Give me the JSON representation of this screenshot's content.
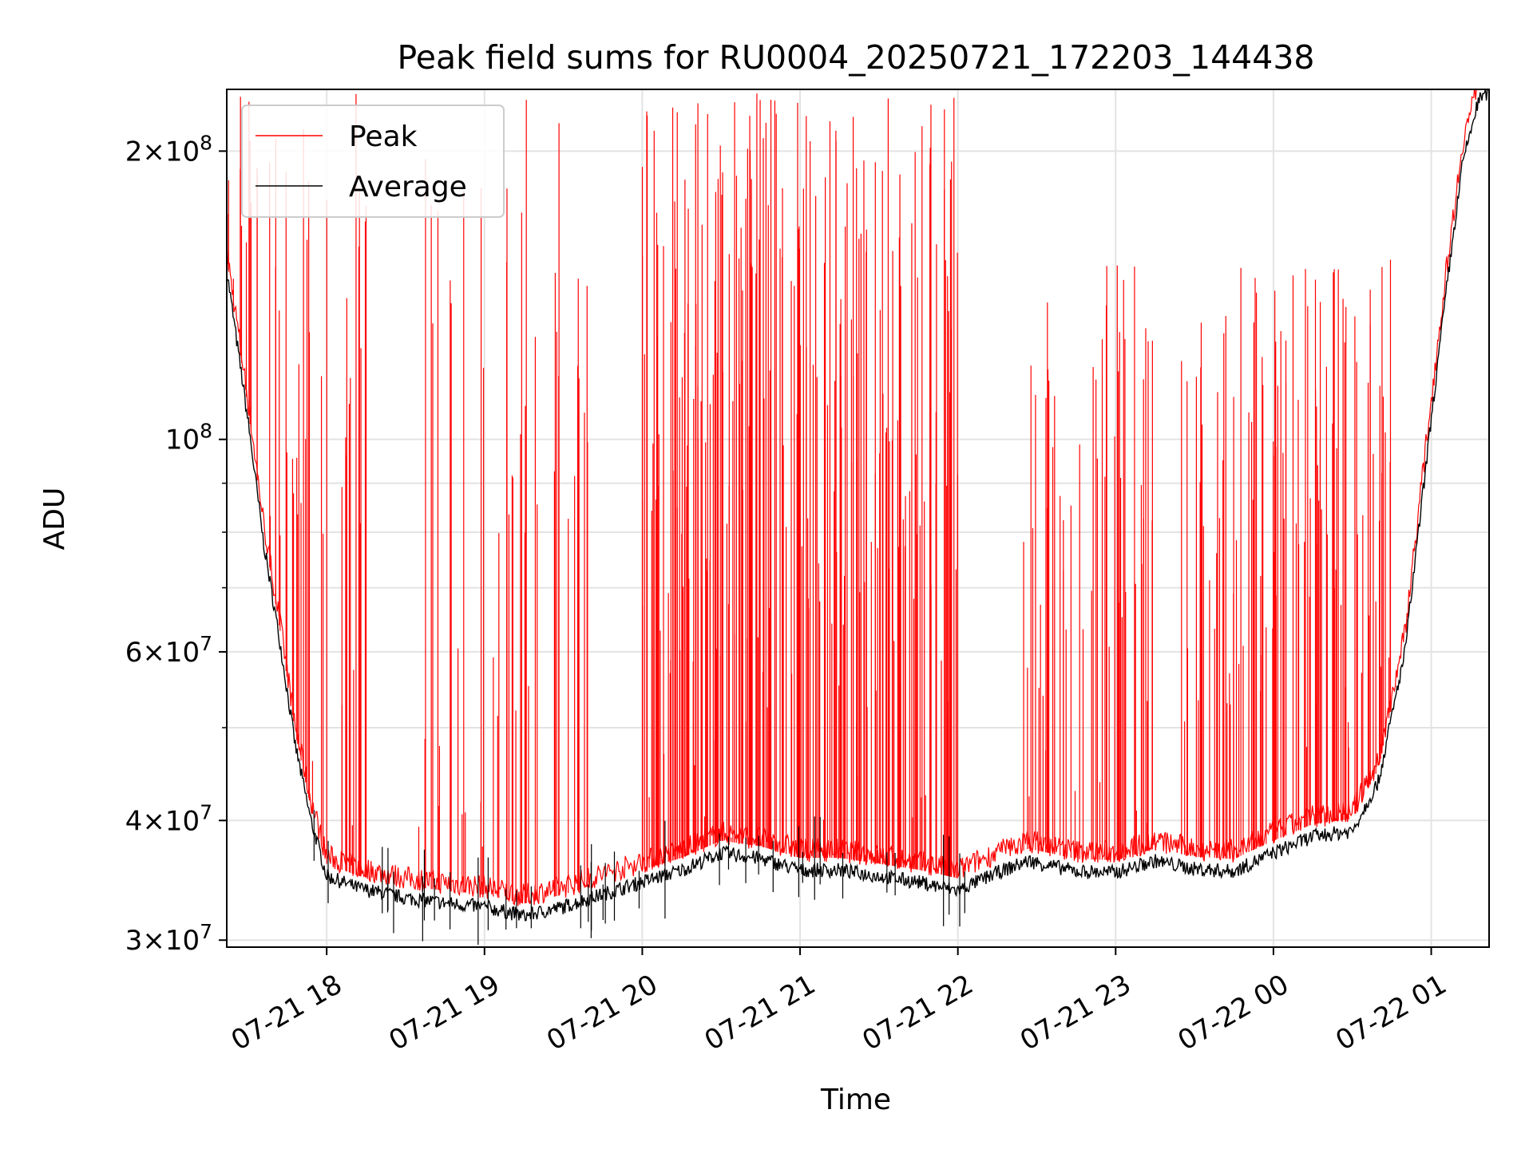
{
  "chart_data": {
    "type": "line",
    "title": "Peak field sums for RU0004_20250721_172203_144438",
    "xlabel": "Time",
    "ylabel": "ADU",
    "yscale": "log",
    "grid": true,
    "legend_position": "top-left",
    "x_range": [
      "2025-07-21 17:22",
      "2025-07-22 01:22"
    ],
    "ylim": [
      29500000,
      232000000
    ],
    "x_ticks": [
      "07-21 18",
      "07-21 19",
      "07-21 20",
      "07-21 21",
      "07-21 22",
      "07-21 23",
      "07-22 00",
      "07-22 01"
    ],
    "y_ticks": [
      {
        "value": 30000000,
        "mantissa": "3",
        "exponent": "7"
      },
      {
        "value": 40000000,
        "mantissa": "4",
        "exponent": "7"
      },
      {
        "value": 60000000,
        "mantissa": "6",
        "exponent": "7"
      },
      {
        "value": 100000000,
        "mantissa": "",
        "exponent": "8"
      },
      {
        "value": 200000000,
        "mantissa": "2",
        "exponent": "8"
      }
    ],
    "series": [
      {
        "name": "Peak",
        "color": "#ff0000"
      },
      {
        "name": "Average",
        "color": "#000000"
      }
    ],
    "average_series": {
      "x": [
        "2025-07-21 17:22",
        "2025-07-21 17:30",
        "2025-07-21 17:36",
        "2025-07-21 17:42",
        "2025-07-21 17:48",
        "2025-07-21 17:54",
        "2025-07-21 18:00",
        "2025-07-21 18:12",
        "2025-07-21 18:30",
        "2025-07-21 18:45",
        "2025-07-21 19:00",
        "2025-07-21 19:15",
        "2025-07-21 19:30",
        "2025-07-21 19:45",
        "2025-07-21 20:00",
        "2025-07-21 20:15",
        "2025-07-21 20:30",
        "2025-07-21 20:45",
        "2025-07-21 21:00",
        "2025-07-21 21:15",
        "2025-07-21 21:30",
        "2025-07-21 21:45",
        "2025-07-21 22:00",
        "2025-07-21 22:15",
        "2025-07-21 22:27",
        "2025-07-21 22:45",
        "2025-07-21 23:00",
        "2025-07-21 23:15",
        "2025-07-21 23:30",
        "2025-07-21 23:45",
        "2025-07-22 00:00",
        "2025-07-22 00:15",
        "2025-07-22 00:30",
        "2025-07-22 00:40",
        "2025-07-22 00:50",
        "2025-07-22 01:00",
        "2025-07-22 01:06",
        "2025-07-22 01:12",
        "2025-07-22 01:18",
        "2025-07-22 01:22"
      ],
      "y": [
        150000000,
        105000000,
        78000000,
        62000000,
        48000000,
        40000000,
        35000000,
        34000000,
        33200000,
        32800000,
        32500000,
        31800000,
        32500000,
        33500000,
        34500000,
        35500000,
        37000000,
        36500000,
        35500000,
        35500000,
        35000000,
        34500000,
        33800000,
        35300000,
        36300000,
        35400000,
        35300000,
        36300000,
        35600000,
        35400000,
        37000000,
        38500000,
        39000000,
        44000000,
        60000000,
        105000000,
        145000000,
        195000000,
        226000000,
        231000000
      ]
    },
    "peak_spike_groups": [
      {
        "from": "2025-07-21 17:22",
        "to": "2025-07-21 18:15",
        "count": 55,
        "max": 230000000,
        "seed": 11
      },
      {
        "from": "2025-07-21 18:35",
        "to": "2025-07-21 19:40",
        "count": 48,
        "max": 230000000,
        "seed": 23
      },
      {
        "from": "2025-07-21 20:00",
        "to": "2025-07-21 22:00",
        "count": 260,
        "max": 230000000,
        "seed": 37
      },
      {
        "from": "2025-07-21 22:25",
        "to": "2025-07-21 23:15",
        "count": 60,
        "max": 155000000,
        "seed": 41
      },
      {
        "from": "2025-07-21 23:25",
        "to": "2025-07-22 00:47",
        "count": 120,
        "max": 155000000,
        "seed": 59
      }
    ]
  }
}
